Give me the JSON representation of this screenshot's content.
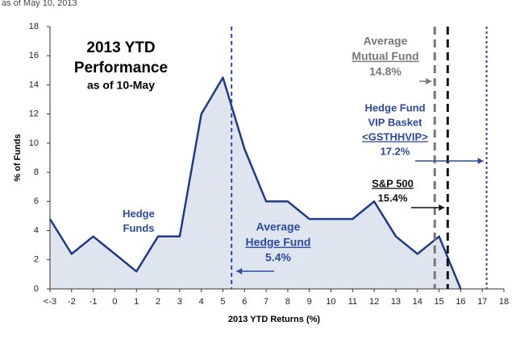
{
  "chart_data": {
    "type": "area",
    "subtitle": "as of May 10, 2013",
    "title": [
      "2013 YTD",
      "Performance"
    ],
    "title_note": "as of 10-May",
    "x_label": "2013 YTD Returns (%)",
    "y_label": "% of Funds",
    "series": [
      {
        "name": "Hedge Funds",
        "color": "#1f3a8a",
        "fill": "#dfe5ef",
        "x": [
          -3,
          -2,
          -1,
          0,
          1,
          2,
          3,
          4,
          5,
          6,
          7,
          8,
          9,
          10,
          11,
          12,
          13,
          14,
          15,
          16
        ],
        "values": [
          4.8,
          2.4,
          3.6,
          2.4,
          1.2,
          3.6,
          3.6,
          12,
          14.5,
          9.6,
          6,
          6,
          4.8,
          4.8,
          4.8,
          6,
          3.6,
          2.4,
          3.6,
          0
        ]
      }
    ],
    "reference_lines": [
      {
        "value": 5.4,
        "lines": [
          "Average",
          "Hedge Fund"
        ],
        "value_label": "5.4%",
        "color": "#2b4aa0",
        "style": "dashed"
      },
      {
        "value": 14.8,
        "lines": [
          "Average",
          "Mutual Fund"
        ],
        "value_label": "14.8%",
        "color": "#777777",
        "style": "heavy-dashed"
      },
      {
        "value": 15.4,
        "lines": [
          "S&P 500"
        ],
        "value_label": "15.4%",
        "color": "#111111",
        "style": "heavy-dashed"
      },
      {
        "value": 17.2,
        "lines": [
          "Hedge Fund",
          "VIP Basket",
          "<GSTHHVIP>"
        ],
        "value_label": "17.2%",
        "color": "#2b4aa0",
        "style": "dotted"
      }
    ],
    "xlim": [
      -3,
      18
    ],
    "xticks": [
      {
        "value": -3,
        "label": "<-3"
      },
      -2,
      -1,
      0,
      1,
      2,
      3,
      4,
      5,
      6,
      7,
      8,
      9,
      10,
      11,
      12,
      13,
      14,
      15,
      16,
      17,
      18
    ],
    "ylim": [
      0,
      18
    ],
    "yticks": [
      0,
      2,
      4,
      6,
      8,
      10,
      12,
      14,
      16,
      18
    ],
    "grid": false
  }
}
